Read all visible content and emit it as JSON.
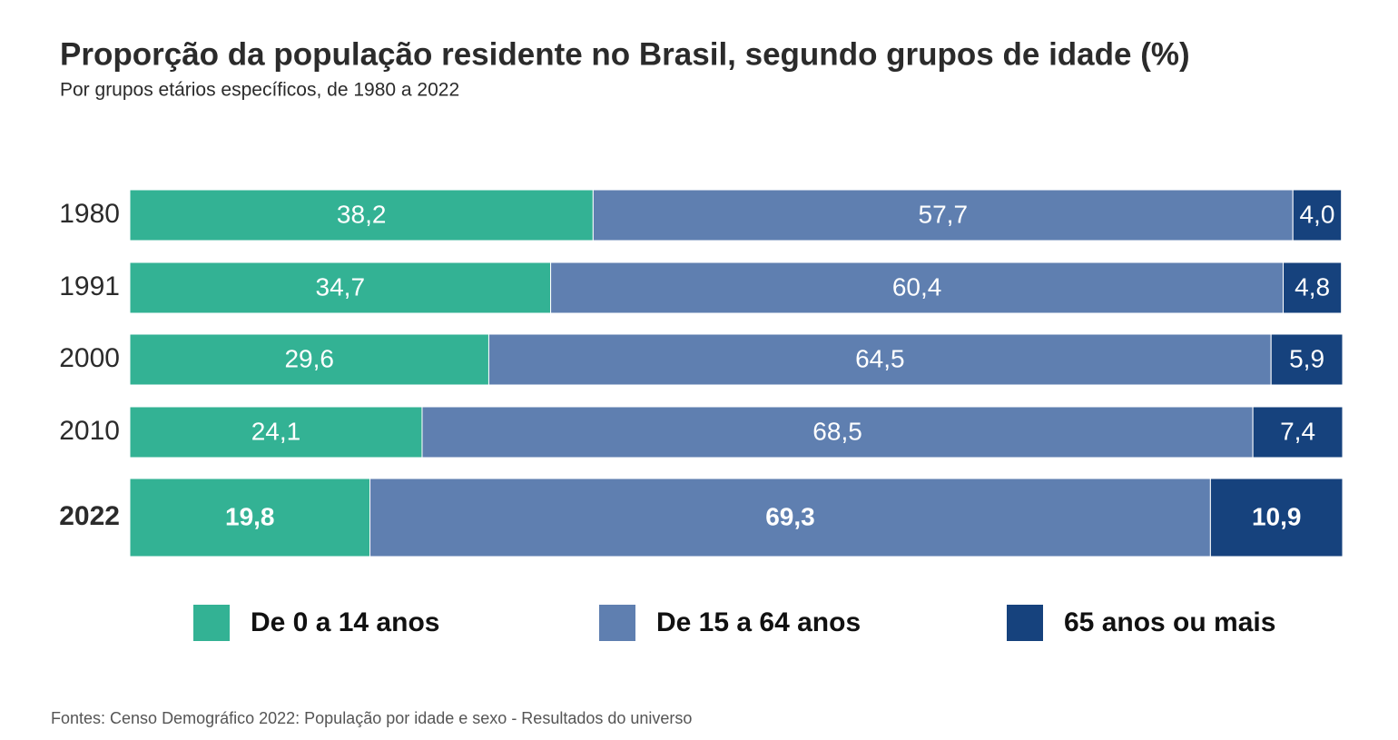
{
  "chart_data": {
    "type": "stacked-bar-horizontal",
    "title": "Proporção da população residente no Brasil, segundo grupos de idade (%)",
    "subtitle": "Por grupos etários específicos, de 1980 a 2022",
    "source": "Fontes: Censo Demográfico 2022: População por idade e sexo - Resultados do universo",
    "categories": [
      "1980",
      "1991",
      "2000",
      "2010",
      "2022"
    ],
    "xlim": [
      0,
      100
    ],
    "series": [
      {
        "name": "De 0 a 14 anos",
        "color": "#33b294",
        "values": [
          38.2,
          34.7,
          29.6,
          24.1,
          19.8
        ],
        "value_labels": [
          "38,2",
          "34,7",
          "29,6",
          "24,1",
          "19,8"
        ]
      },
      {
        "name": "De 15 a 64 anos",
        "color": "#5f7fb0",
        "values": [
          57.7,
          60.4,
          64.5,
          68.5,
          69.3
        ],
        "value_labels": [
          "57,7",
          "60,4",
          "64,5",
          "68,5",
          "69,3"
        ]
      },
      {
        "name": "65 anos ou mais",
        "color": "#16427d",
        "values": [
          4.0,
          4.8,
          5.9,
          7.4,
          10.9
        ],
        "value_labels": [
          "4,0",
          "4,8",
          "5,9",
          "7,4",
          "10,9"
        ]
      }
    ]
  }
}
